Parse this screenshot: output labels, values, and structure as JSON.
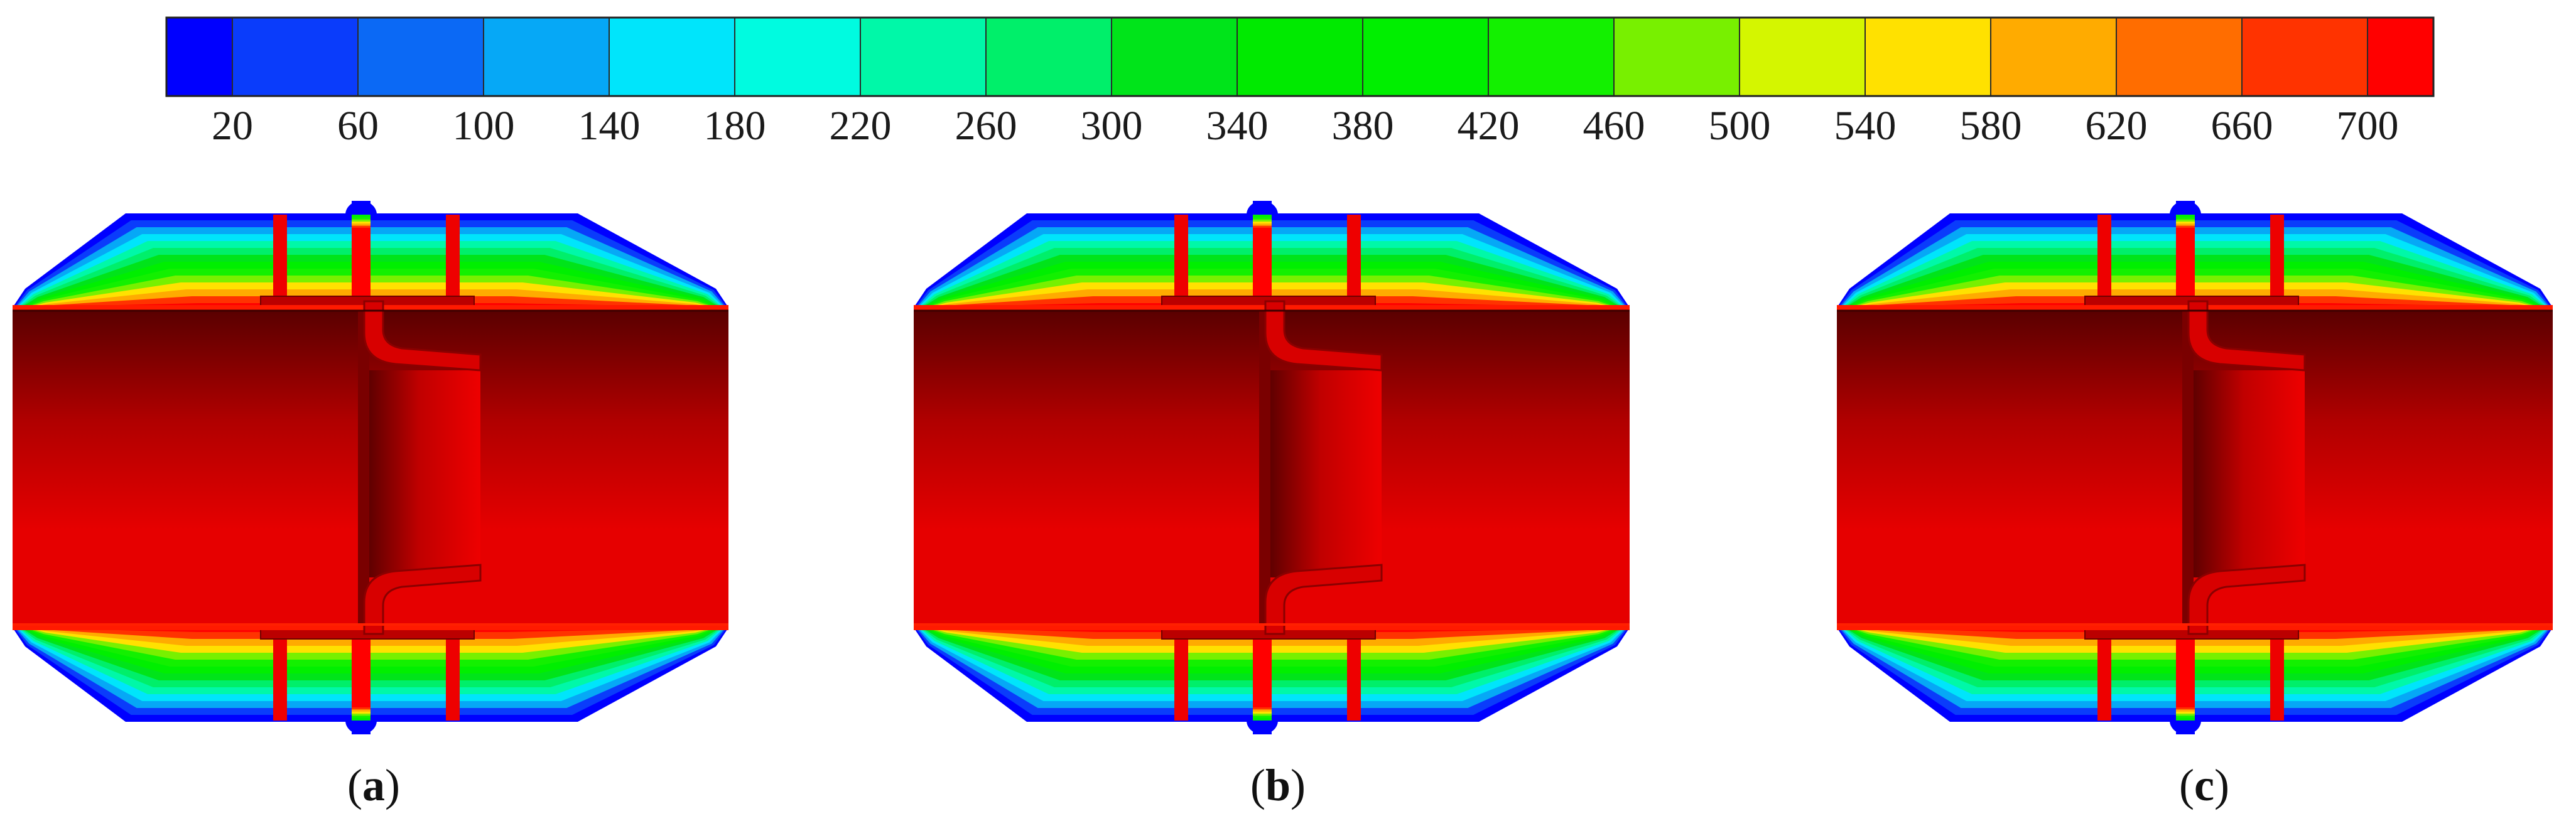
{
  "legend": {
    "colors": [
      "#0000ff",
      "#0a3cfb",
      "#0b69f5",
      "#06a8f6",
      "#00e5fb",
      "#00fbe0",
      "#00f8a8",
      "#00ef6a",
      "#00e41a",
      "#00ea00",
      "#00ef00",
      "#13f000",
      "#78f000",
      "#d4f600",
      "#ffe100",
      "#ffab00",
      "#ff6d00",
      "#ff3300",
      "#ff0000"
    ],
    "bins": 18,
    "ticks": [
      "20",
      "60",
      "100",
      "140",
      "180",
      "220",
      "260",
      "300",
      "340",
      "380",
      "420",
      "460",
      "500",
      "540",
      "580",
      "620",
      "660",
      "700"
    ]
  },
  "panels": [
    {
      "label_open": "(",
      "label_letter": "a",
      "label_close": ")"
    },
    {
      "label_open": "(",
      "label_letter": "b",
      "label_close": ")"
    },
    {
      "label_open": "(",
      "label_letter": "c",
      "label_close": ")"
    }
  ],
  "field_colors": {
    "hot_dark": "#5a0000",
    "hot_mid": "#b00000",
    "hot": "#e60000",
    "cold": "#0010d0"
  }
}
